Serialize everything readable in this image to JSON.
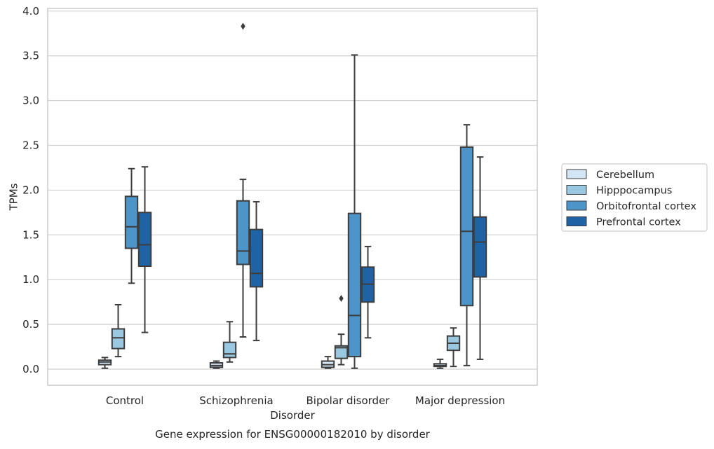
{
  "chart_data": {
    "type": "box",
    "caption": "Gene expression for ENSG00000182010 by disorder",
    "xlabel": "Disorder",
    "ylabel": "TPMs",
    "ylim": [
      -0.18,
      4.03
    ],
    "yticks": [
      0.0,
      0.5,
      1.0,
      1.5,
      2.0,
      2.5,
      3.0,
      3.5,
      4.0
    ],
    "ytick_labels": [
      "0.0",
      "0.5",
      "1.0",
      "1.5",
      "2.0",
      "2.5",
      "3.0",
      "3.5",
      "4.0"
    ],
    "grid": "horizontal",
    "legend_placement": "right",
    "categories": [
      "Control",
      "Schizophrenia",
      "Bipolar disorder",
      "Major depression"
    ],
    "series": [
      {
        "name": "Cerebellum",
        "color": "#d3e4f3",
        "boxes": [
          {
            "whislo": 0.01,
            "q1": 0.05,
            "med": 0.08,
            "q3": 0.1,
            "whishi": 0.13,
            "fliers": []
          },
          {
            "whislo": 0.01,
            "q1": 0.02,
            "med": 0.04,
            "q3": 0.07,
            "whishi": 0.09,
            "fliers": []
          },
          {
            "whislo": 0.01,
            "q1": 0.02,
            "med": 0.05,
            "q3": 0.09,
            "whishi": 0.14,
            "fliers": []
          },
          {
            "whislo": 0.01,
            "q1": 0.03,
            "med": 0.04,
            "q3": 0.06,
            "whishi": 0.11,
            "fliers": []
          }
        ]
      },
      {
        "name": "Hipppocampus",
        "color": "#9ac8e0",
        "boxes": [
          {
            "whislo": 0.14,
            "q1": 0.23,
            "med": 0.35,
            "q3": 0.45,
            "whishi": 0.72,
            "fliers": []
          },
          {
            "whislo": 0.08,
            "q1": 0.13,
            "med": 0.17,
            "q3": 0.3,
            "whishi": 0.53,
            "fliers": []
          },
          {
            "whislo": 0.05,
            "q1": 0.12,
            "med": 0.24,
            "q3": 0.26,
            "whishi": 0.39,
            "fliers": [
              0.79
            ]
          },
          {
            "whislo": 0.03,
            "q1": 0.21,
            "med": 0.29,
            "q3": 0.37,
            "whishi": 0.46,
            "fliers": []
          }
        ]
      },
      {
        "name": "Orbitofrontal cortex",
        "color": "#4d94c8",
        "boxes": [
          {
            "whislo": 0.96,
            "q1": 1.35,
            "med": 1.59,
            "q3": 1.93,
            "whishi": 2.24,
            "fliers": []
          },
          {
            "whislo": 0.36,
            "q1": 1.17,
            "med": 1.32,
            "q3": 1.88,
            "whishi": 2.12,
            "fliers": [
              3.83
            ]
          },
          {
            "whislo": 0.01,
            "q1": 0.14,
            "med": 0.6,
            "q3": 1.74,
            "whishi": 3.51,
            "fliers": []
          },
          {
            "whislo": 0.04,
            "q1": 0.71,
            "med": 1.54,
            "q3": 2.48,
            "whishi": 2.73,
            "fliers": []
          }
        ]
      },
      {
        "name": "Prefrontal cortex",
        "color": "#1f63a5",
        "boxes": [
          {
            "whislo": 0.41,
            "q1": 1.15,
            "med": 1.39,
            "q3": 1.75,
            "whishi": 2.26,
            "fliers": []
          },
          {
            "whislo": 0.32,
            "q1": 0.92,
            "med": 1.07,
            "q3": 1.56,
            "whishi": 1.87,
            "fliers": []
          },
          {
            "whislo": 0.35,
            "q1": 0.75,
            "med": 0.95,
            "q3": 1.14,
            "whishi": 1.37,
            "fliers": []
          },
          {
            "whislo": 0.11,
            "q1": 1.03,
            "med": 1.42,
            "q3": 1.7,
            "whishi": 2.37,
            "fliers": []
          }
        ]
      }
    ],
    "colors": {
      "grid": "#d0d0d0",
      "frame": "#cccccc",
      "box_edge": "#3d3d3d",
      "text": "#262626",
      "legend_border": "#cccccc"
    }
  }
}
